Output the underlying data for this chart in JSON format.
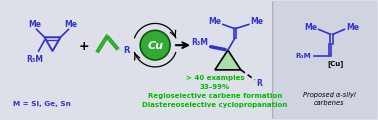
{
  "bg_main": "#dde0e8",
  "bg_right": "#d0d4e0",
  "blue": "#3333cc",
  "green_mol": "#22aa22",
  "green_text": "#00bb00",
  "cu_fill": "#33aa33",
  "cu_edge": "#115511",
  "figsize": [
    3.78,
    1.2
  ],
  "dpi": 100,
  "m_label": "M = Si, Ge, Sn",
  "line1": "> 40 examples",
  "line2": "33–99%",
  "line3": "Regioselective carbene formation",
  "line4": "Diastereoselective cyclopropanation"
}
